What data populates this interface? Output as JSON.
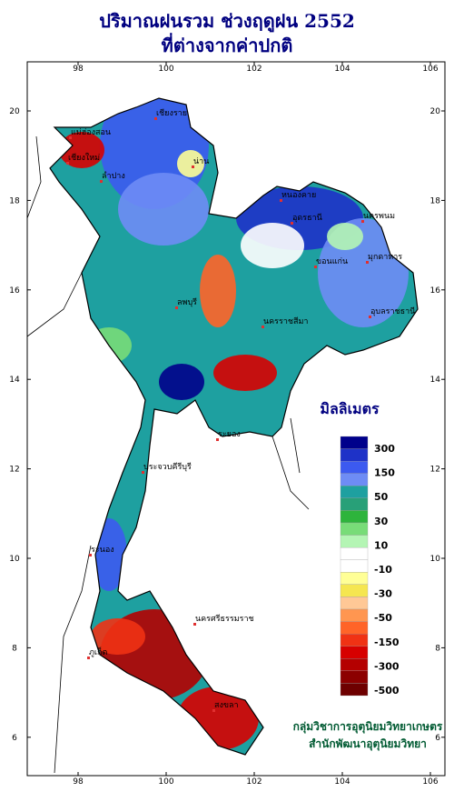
{
  "title": [
    "ปริมาณฝนรวม ช่วงฤดูฝน 2552",
    "ที่ต่างจากค่าปกติ"
  ],
  "map": {
    "lon_ticks": [
      98,
      100,
      102,
      104,
      106
    ],
    "lat_ticks": [
      6,
      8,
      10,
      12,
      14,
      16,
      18,
      20
    ],
    "places": [
      "เชียงราย",
      "แม่ฮ่องสอน",
      "เชียงใหม่",
      "ลำปาง",
      "น่าน",
      "หนองคาย",
      "อุดรธานี",
      "นครพนม",
      "ขอนแก่น",
      "มุกดาหาร",
      "นครราชสีมา",
      "อุบลราชธานี",
      "ลพบุรี",
      "ระยอง",
      "ประจวบคีรีบุรี",
      "ระนอง",
      "ภูเก็ต",
      "สงขลา",
      "นครศรีธรรมราช"
    ]
  },
  "legend": {
    "title": "มิลลิเมตร",
    "labels": [
      "300",
      "150",
      "50",
      "30",
      "10",
      "-10",
      "-30",
      "-50",
      "-150",
      "-300",
      "-500"
    ],
    "colors": [
      "#00008b",
      "#1e32c8",
      "#3c5af0",
      "#6e8cf5",
      "#1ea0a0",
      "#28a078",
      "#2eb43c",
      "#78dc78",
      "#b4f5b4",
      "#ffffff",
      "#ffffff",
      "#ffff96",
      "#f5e650",
      "#ffc896",
      "#ff9650",
      "#ff6428",
      "#f03214",
      "#d70000",
      "#b40000",
      "#8c0000",
      "#6e0000"
    ]
  },
  "credits": [
    "กลุ่มวิชาการอุตุนิยมวิทยาเกษตร",
    "สำนักพัฒนาอุตุนิยมวิทยา"
  ]
}
